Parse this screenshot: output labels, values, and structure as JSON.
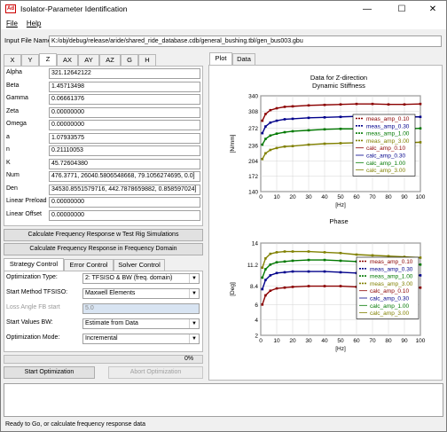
{
  "window": {
    "title": "Isolator-Parameter Identification",
    "app_icon": "Ad"
  },
  "menu": [
    "File",
    "Help"
  ],
  "input_file": {
    "label": "Input File Name",
    "value": "K:/obj/debug/release/aride/shared_ride_database.cdb/general_bushing.tbl/gen_bus003.gbu"
  },
  "dir_tabs": [
    "X",
    "Y",
    "Z",
    "AX",
    "AY",
    "AZ",
    "G",
    "H"
  ],
  "params": [
    {
      "label": "Alpha",
      "value": "321.12642122"
    },
    {
      "label": "Beta",
      "value": "1.45713498"
    },
    {
      "label": "Gamma",
      "value": "0.06661376"
    },
    {
      "label": "Zeta",
      "value": "0.00000000"
    },
    {
      "label": "Omega",
      "value": "0.00000000"
    },
    {
      "label": "a",
      "value": "1.07933575"
    },
    {
      "label": "n",
      "value": "0.21110053"
    },
    {
      "label": "K",
      "value": "45.72604380"
    },
    {
      "label": "Num",
      "value": "476.3771, 26040.5806548668, 79.1056274695, 0.0]"
    },
    {
      "label": "Den",
      "value": "34530.8551579716, 442.7878659882, 0.858597024]"
    },
    {
      "label": "Linear Preload",
      "value": "0.00000000"
    },
    {
      "label": "Linear Offset",
      "value": "0.00000000"
    }
  ],
  "buttons": {
    "calc_test_rig": "Calculate Frequency Response w Test Rig Simulations",
    "calc_freq_domain": "Calculate Frequency Response in Frequency Domain",
    "start_opt": "Start Optimization",
    "abort_opt": "Abort Optimization"
  },
  "control_tabs": [
    "Strategy Control",
    "Error Control",
    "Solver Control"
  ],
  "strategy": [
    {
      "label": "Optimization Type:",
      "value": "2: TFSISO & BW (freq. domain)",
      "enabled": true
    },
    {
      "label": "Start Method TFSISO:",
      "value": "Maxwell Elements",
      "enabled": true
    },
    {
      "label": "Loss Angle FB start",
      "value": "5.0",
      "enabled": false
    },
    {
      "label": "Start Values BW:",
      "value": "Estimate from Data",
      "enabled": true
    },
    {
      "label": "Optimization Mode:",
      "value": "Incremental",
      "enabled": true
    }
  ],
  "progress": {
    "text": "0%",
    "value": 0
  },
  "plot_tabs": [
    "Plot",
    "Data"
  ],
  "status": "Ready to Go, or calculate frequency response data",
  "legend": [
    "meas_amp_0.10",
    "meas_amp_0.30",
    "meas_amp_1.00",
    "meas_amp_3.00",
    "calc_amp_0.10",
    "calc_amp_0.30",
    "calc_amp_1.00",
    "calc_amp_3.00"
  ],
  "colors": {
    "s1": "#8b0000",
    "s2": "#00008b",
    "s3": "#007800",
    "s4": "#808000"
  },
  "chart_data": [
    {
      "type": "line",
      "title": "Data for Z-direction\nDynamic Stiffness",
      "title_line1": "Data for Z-direction",
      "title_line2": "Dynamic Stiffness",
      "xlabel": "[Hz]",
      "ylabel": "[N/mm]",
      "xlim": [
        0,
        100
      ],
      "ylim": [
        140,
        340
      ],
      "xticks": [
        0,
        10,
        20,
        30,
        40,
        50,
        60,
        70,
        80,
        90,
        100
      ],
      "yticks": [
        140,
        172,
        204,
        236,
        272,
        308,
        340
      ],
      "legend_position": "right",
      "series": [
        {
          "name": "meas_amp_0.10",
          "x": [
            1,
            3,
            6,
            10,
            15,
            20,
            30,
            40,
            50,
            60,
            70,
            80,
            90,
            100
          ],
          "y": [
            288,
            302,
            310,
            314,
            317,
            318,
            320,
            321,
            322,
            323,
            323,
            322,
            322,
            323
          ]
        },
        {
          "name": "meas_amp_0.30",
          "x": [
            1,
            3,
            6,
            10,
            15,
            20,
            30,
            40,
            50,
            60,
            70,
            80,
            90,
            100
          ],
          "y": [
            262,
            276,
            284,
            288,
            291,
            292,
            294,
            295,
            296,
            297,
            296,
            297,
            296,
            296
          ]
        },
        {
          "name": "meas_amp_1.00",
          "x": [
            1,
            3,
            6,
            10,
            15,
            20,
            30,
            40,
            50,
            60,
            70,
            80,
            90,
            100
          ],
          "y": [
            238,
            250,
            257,
            261,
            264,
            266,
            268,
            270,
            271,
            271,
            272,
            272,
            271,
            272
          ]
        },
        {
          "name": "meas_amp_3.00",
          "x": [
            1,
            3,
            6,
            10,
            15,
            20,
            30,
            40,
            50,
            60,
            70,
            80,
            90,
            100
          ],
          "y": [
            208,
            220,
            227,
            231,
            234,
            235,
            238,
            240,
            241,
            242,
            242,
            243,
            242,
            243
          ]
        }
      ]
    },
    {
      "type": "line",
      "title": "Phase",
      "title_line1": "Phase",
      "title_line2": "",
      "xlabel": "[Hz]",
      "ylabel": "[Deg]",
      "xlim": [
        0,
        100
      ],
      "ylim": [
        2,
        14
      ],
      "xticks": [
        0,
        10,
        20,
        30,
        40,
        50,
        60,
        70,
        80,
        90,
        100
      ],
      "yticks": [
        2,
        4,
        6,
        8.4,
        11.2,
        14
      ],
      "legend_position": "right",
      "series": [
        {
          "name": "meas_amp_0.10",
          "x": [
            1,
            3,
            6,
            10,
            15,
            20,
            30,
            40,
            50,
            60,
            70,
            80,
            90,
            100
          ],
          "y": [
            6.0,
            7.2,
            7.8,
            8.1,
            8.2,
            8.3,
            8.4,
            8.4,
            8.4,
            8.3,
            8.3,
            8.2,
            8.2,
            8.2
          ]
        },
        {
          "name": "meas_amp_0.30",
          "x": [
            1,
            3,
            6,
            10,
            15,
            20,
            30,
            40,
            50,
            60,
            70,
            80,
            90,
            100
          ],
          "y": [
            8.0,
            9.2,
            9.8,
            10.1,
            10.2,
            10.3,
            10.3,
            10.3,
            10.2,
            10.1,
            10.0,
            10.0,
            9.9,
            9.8
          ]
        },
        {
          "name": "meas_amp_1.00",
          "x": [
            1,
            3,
            6,
            10,
            15,
            20,
            30,
            40,
            50,
            60,
            70,
            80,
            90,
            100
          ],
          "y": [
            9.5,
            10.6,
            11.2,
            11.5,
            11.6,
            11.7,
            11.8,
            11.8,
            11.7,
            11.6,
            11.5,
            11.4,
            11.3,
            11.2
          ]
        },
        {
          "name": "meas_amp_3.00",
          "x": [
            1,
            3,
            6,
            10,
            15,
            20,
            30,
            40,
            50,
            60,
            70,
            80,
            90,
            100
          ],
          "y": [
            10.8,
            12.0,
            12.6,
            12.8,
            12.9,
            12.9,
            12.9,
            12.8,
            12.7,
            12.5,
            12.4,
            12.3,
            12.2,
            12.1
          ]
        }
      ]
    }
  ]
}
